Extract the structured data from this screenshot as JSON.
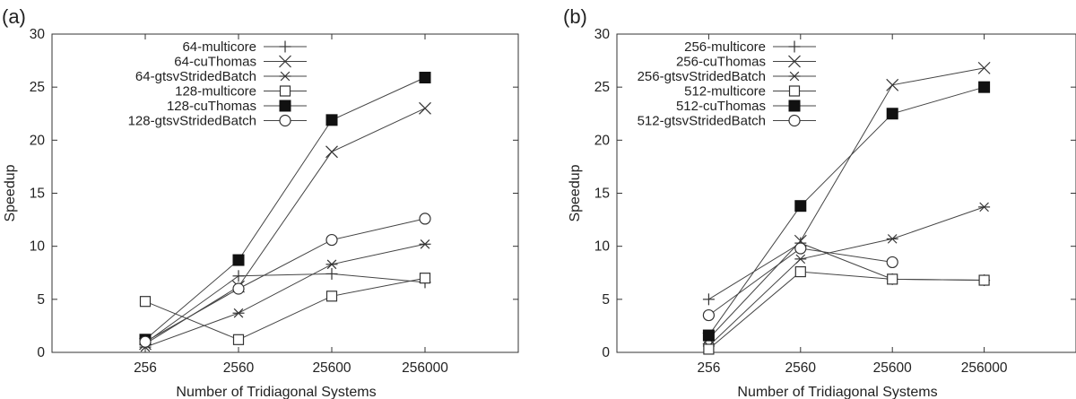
{
  "chart_data": [
    {
      "panel_label": "(a)",
      "type": "line",
      "xlabel": "Number of Tridiagonal Systems",
      "ylabel": "Speedup",
      "categories": [
        "256",
        "2560",
        "25600",
        "256000"
      ],
      "x_scale": "log",
      "ylim": [
        0,
        30
      ],
      "yticks": [
        "0",
        "5",
        "10",
        "15",
        "20",
        "25",
        "30"
      ],
      "legend_position": "top-left",
      "grid": false,
      "series": [
        {
          "name": "64-multicore",
          "marker": "plus",
          "values": [
            0.9,
            7.2,
            7.4,
            6.6
          ]
        },
        {
          "name": "64-cuThomas",
          "marker": "x",
          "values": [
            0.8,
            6.2,
            18.9,
            23.0
          ]
        },
        {
          "name": "64-gtsvStridedBatch",
          "marker": "star",
          "values": [
            0.5,
            3.7,
            8.3,
            10.2
          ]
        },
        {
          "name": "128-multicore",
          "marker": "open-square",
          "values": [
            4.8,
            1.2,
            5.3,
            7.0
          ]
        },
        {
          "name": "128-cuThomas",
          "marker": "filled-square",
          "values": [
            1.2,
            8.7,
            21.9,
            25.9
          ]
        },
        {
          "name": "128-gtsvStridedBatch",
          "marker": "open-circle",
          "values": [
            1.0,
            6.0,
            10.6,
            12.6
          ]
        }
      ]
    },
    {
      "panel_label": "(b)",
      "type": "line",
      "xlabel": "Number of Tridiagonal Systems",
      "ylabel": "Speedup",
      "categories": [
        "256",
        "2560",
        "25600",
        "256000"
      ],
      "x_scale": "log",
      "ylim": [
        0,
        30
      ],
      "yticks": [
        "0",
        "5",
        "10",
        "15",
        "20",
        "25",
        "30"
      ],
      "legend_position": "top-left",
      "grid": false,
      "series": [
        {
          "name": "256-multicore",
          "marker": "plus",
          "values": [
            5.0,
            10.3,
            6.9,
            6.8
          ]
        },
        {
          "name": "256-cuThomas",
          "marker": "x",
          "values": [
            1.3,
            10.5,
            25.2,
            26.8
          ]
        },
        {
          "name": "256-gtsvStridedBatch",
          "marker": "star",
          "values": [
            0.6,
            8.8,
            10.7,
            13.7
          ]
        },
        {
          "name": "512-multicore",
          "marker": "open-square",
          "values": [
            0.3,
            7.6,
            6.9,
            6.8
          ]
        },
        {
          "name": "512-cuThomas",
          "marker": "filled-square",
          "values": [
            1.6,
            13.8,
            22.5,
            25.0
          ]
        },
        {
          "name": "512-gtsvStridedBatch",
          "marker": "open-circle",
          "values": [
            3.5,
            9.8,
            8.5,
            null
          ]
        }
      ]
    }
  ]
}
